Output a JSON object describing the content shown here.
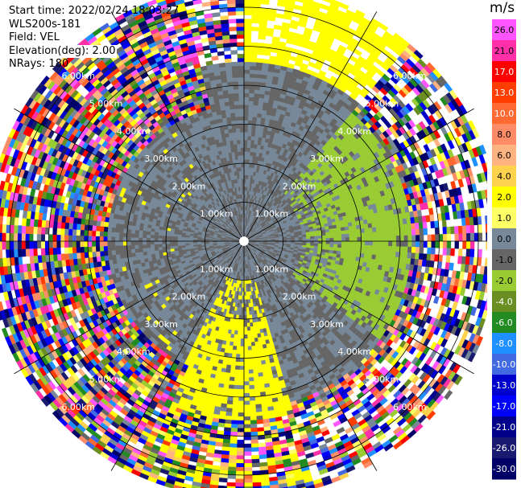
{
  "info": {
    "start_time": "Start time: 2022/02/24 18:03:27",
    "instrument": "WLS200s-181",
    "field": "Field: VEL",
    "elevation": "Elevation(deg): 2.00",
    "nrays": "NRays: 180"
  },
  "chart_data": {
    "type": "heatmap",
    "projection": "polar (PPI)",
    "range_rings_km": [
      1,
      2,
      3,
      4,
      5,
      6
    ],
    "ring_labels": [
      "1.00km",
      "2.00km",
      "3.00km",
      "4.00km",
      "5.00km",
      "6.00km"
    ],
    "nrays": 180,
    "max_range_km": 6.5,
    "colorbar": {
      "unit": "m/s",
      "tick_labels": [
        "26.0",
        "21.0",
        "17.0",
        "13.0",
        "10.0",
        "8.0",
        "6.0",
        "4.0",
        "2.0",
        "1.0",
        "0.0",
        "-1.0",
        "-2.0",
        "-4.0",
        "-6.0",
        "-8.0",
        "-10.0",
        "-13.0",
        "-17.0",
        "-21.0",
        "-26.0",
        "-30.0"
      ],
      "colors": [
        "#ff55ff",
        "#ff2fa8",
        "#ff0000",
        "#ff3d00",
        "#ff6a33",
        "#ff8c66",
        "#ffb380",
        "#ffd24d",
        "#ffff00",
        "#ffff66",
        "#778899",
        "#666666",
        "#99cc33",
        "#6b8e23",
        "#228b22",
        "#1e90ff",
        "#4169e1",
        "#0000cd",
        "#0000ff",
        "#00008b",
        "#191970",
        "#000066"
      ]
    },
    "zones": [
      {
        "range_km": [
          0,
          3.1
        ],
        "azimuth_deg": [
          0,
          360
        ],
        "dominant": "0.0 (gray)"
      },
      {
        "range_km": [
          1.5,
          4.3
        ],
        "azimuth_deg": [
          40,
          125
        ],
        "dominant": "-2.0 (green)"
      },
      {
        "range_km": [
          1.0,
          6.5
        ],
        "azimuth_deg": [
          165,
          205
        ],
        "dominant": "2.0 (yellow)"
      },
      {
        "range_km": [
          4.6,
          6.5
        ],
        "azimuth_deg": [
          0,
          40
        ],
        "dominant": "2.0 (yellow)"
      },
      {
        "range_km": [
          3.5,
          6.5
        ],
        "azimuth_deg": [
          205,
          345
        ],
        "dominant": "noise (mixed)"
      }
    ]
  }
}
